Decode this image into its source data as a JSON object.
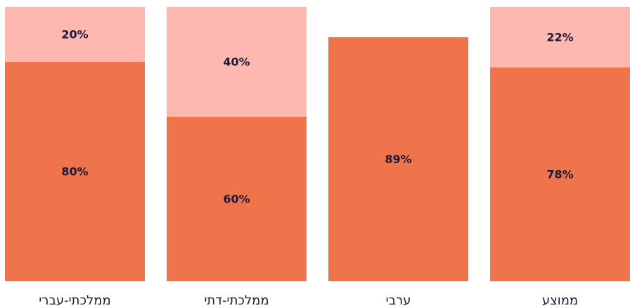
{
  "chart_data": {
    "type": "stacked_bar",
    "categories": [
      "ממלכתי-עברי",
      "ממלכתי-דתי",
      "ערבי",
      "ממוצע"
    ],
    "series": [
      {
        "color": "#f0744b",
        "values": [
          80,
          60,
          89,
          78
        ],
        "value_labels": [
          "80%",
          "60%",
          "89%",
          "78%"
        ]
      },
      {
        "color": "#ffb8b0",
        "values": [
          20,
          40,
          null,
          22
        ],
        "value_labels": [
          "20%",
          "40%",
          null,
          "22%"
        ]
      }
    ],
    "ylim": [
      0,
      100
    ]
  }
}
